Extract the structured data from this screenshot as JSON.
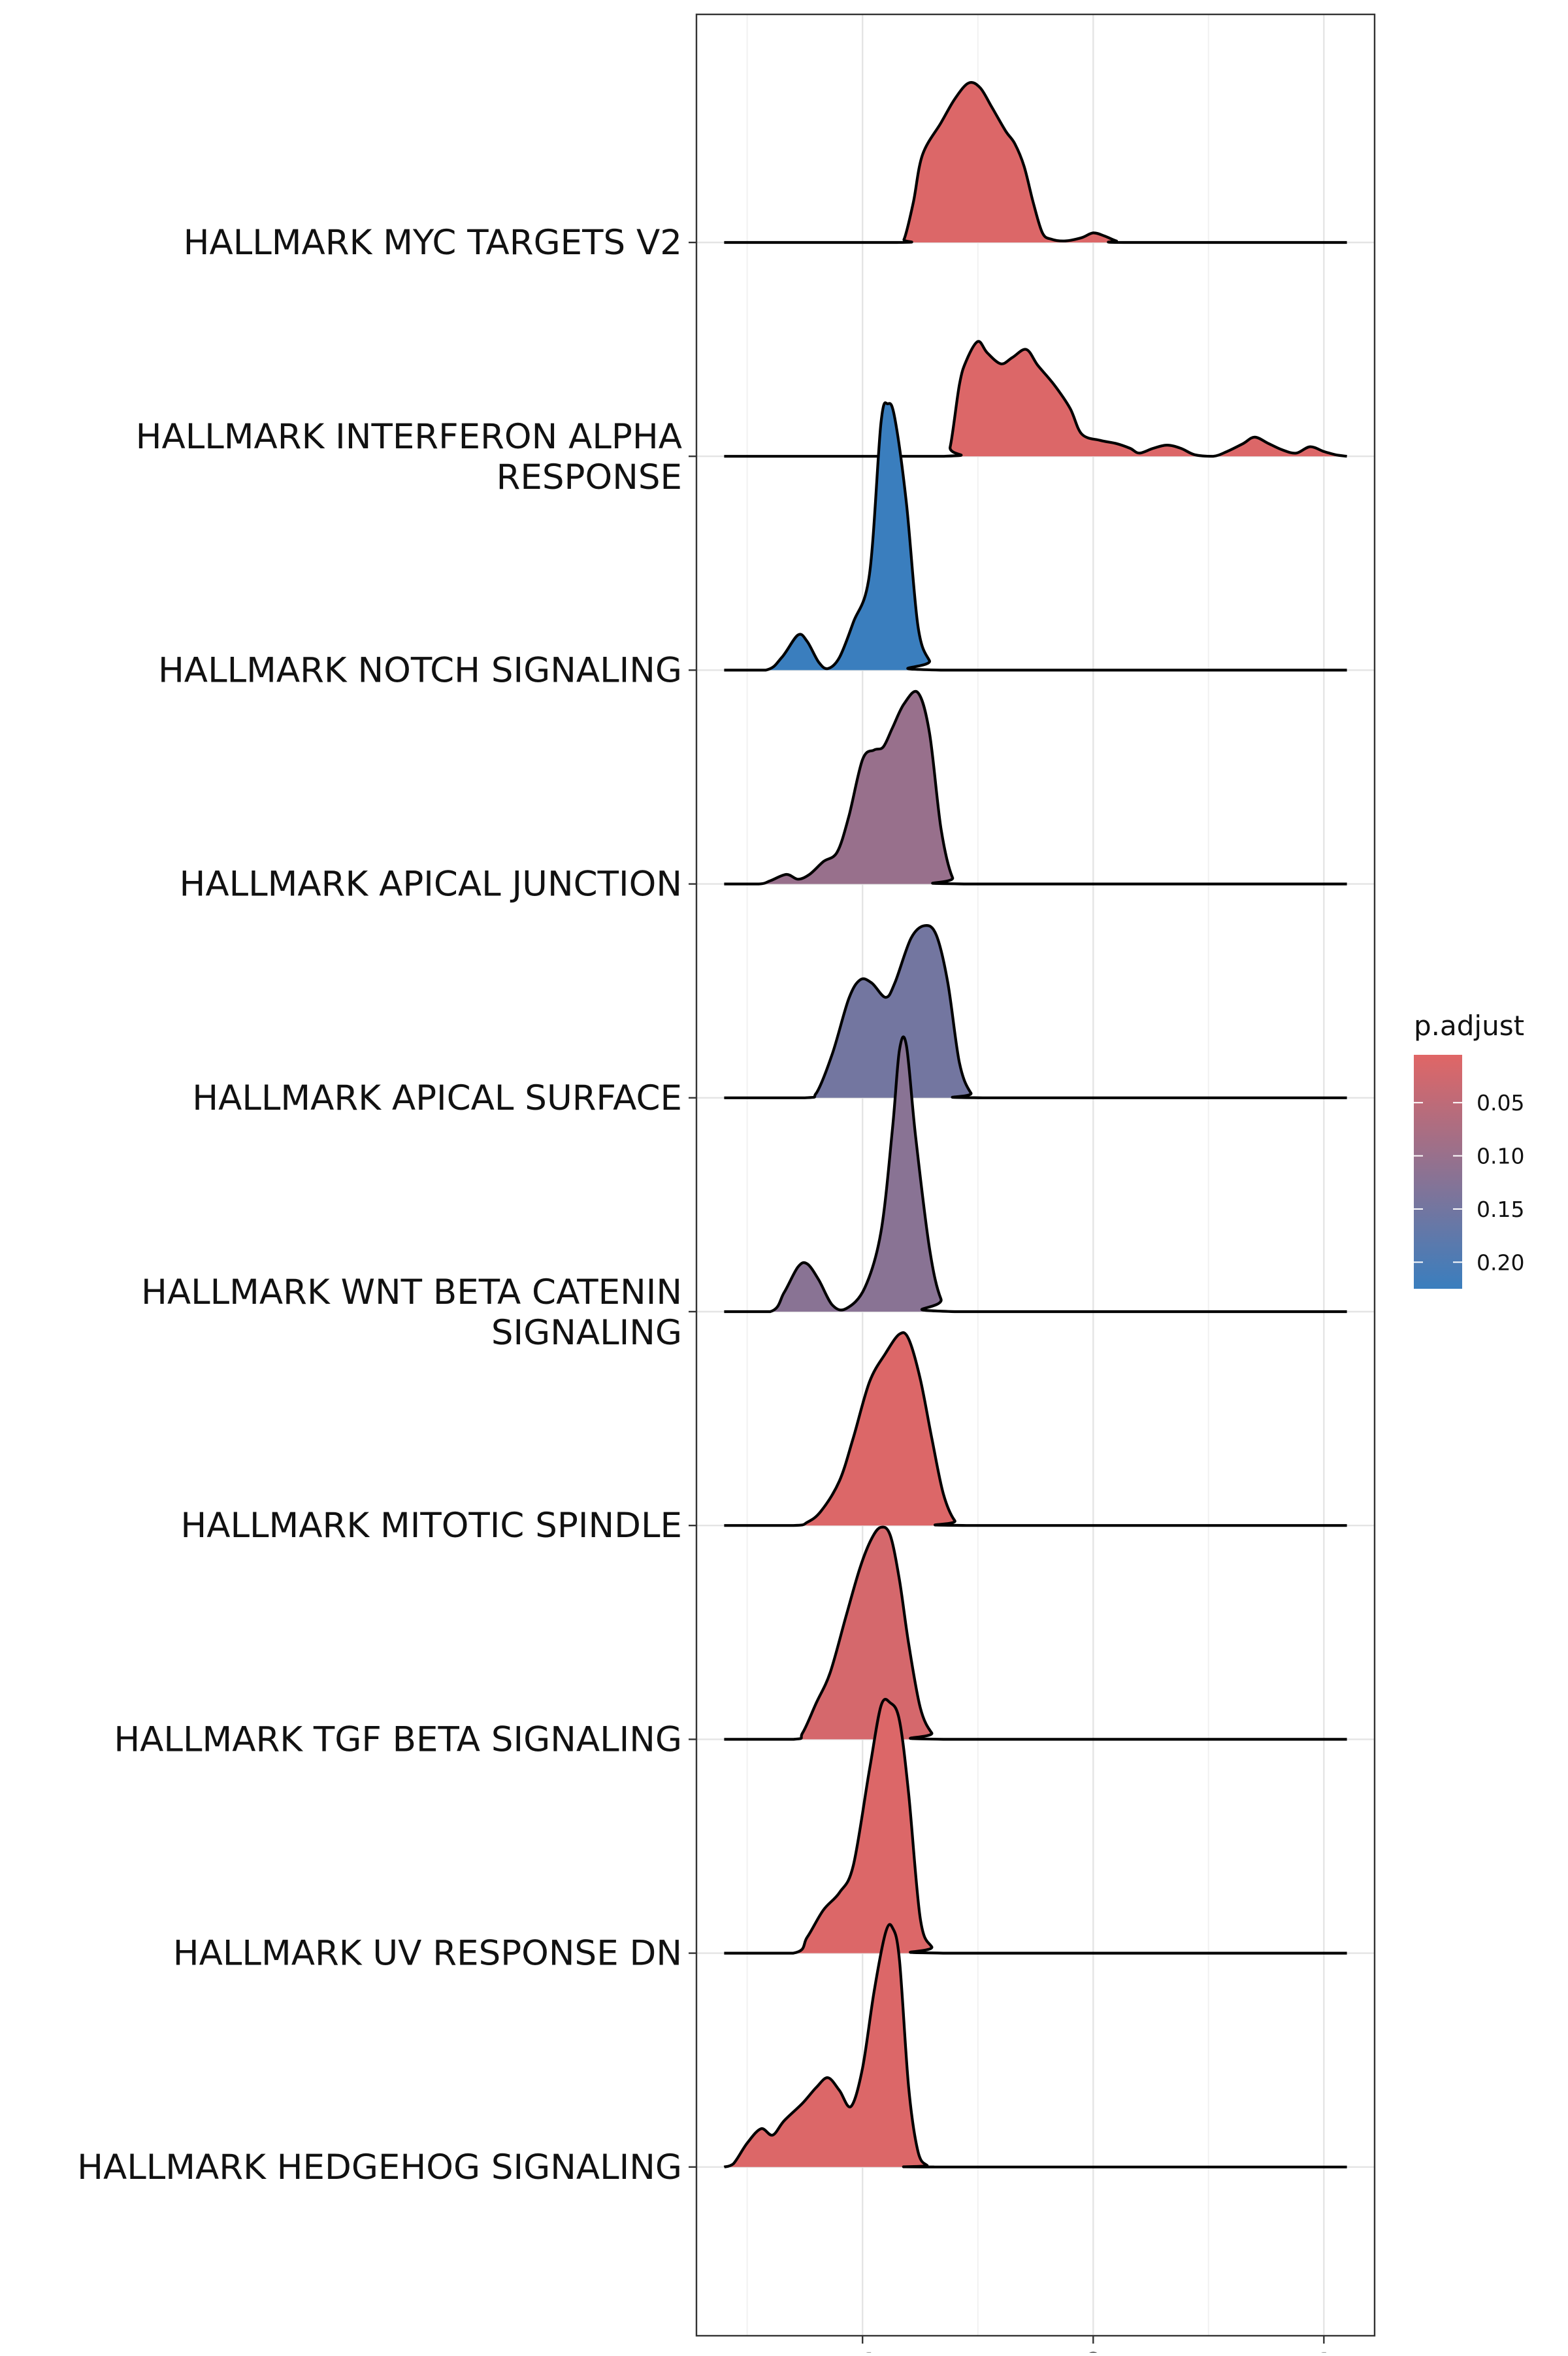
{
  "chart_data": {
    "type": "ridgeline",
    "x_tick_labels": [
      "-1",
      "0",
      "1"
    ],
    "x_ticks": [
      -1,
      0,
      1
    ],
    "xlim": [
      -1.72,
      1.22
    ],
    "grid": true,
    "legend": {
      "title": "p.adjust",
      "placement": "right",
      "range": [
        0.005,
        0.225
      ],
      "ticks": [
        0.05,
        0.1,
        0.15,
        0.2
      ],
      "tick_labels": [
        "0.05",
        "0.10",
        "0.15",
        "0.20"
      ],
      "color_low_p": "#E06666",
      "color_high_p": "#3A7EBE"
    },
    "series": [
      {
        "category": "HALLMARK MYC TARGETS V2",
        "p_adjust": 0.01,
        "density": [
          [
            -1.6,
            0
          ],
          [
            -0.85,
            0
          ],
          [
            -0.82,
            0.02
          ],
          [
            -0.78,
            0.25
          ],
          [
            -0.74,
            0.55
          ],
          [
            -0.66,
            0.75
          ],
          [
            -0.6,
            0.9
          ],
          [
            -0.54,
            1.0
          ],
          [
            -0.49,
            0.97
          ],
          [
            -0.44,
            0.85
          ],
          [
            -0.38,
            0.7
          ],
          [
            -0.34,
            0.62
          ],
          [
            -0.3,
            0.48
          ],
          [
            -0.26,
            0.25
          ],
          [
            -0.22,
            0.06
          ],
          [
            -0.18,
            0.02
          ],
          [
            -0.12,
            0.01
          ],
          [
            -0.05,
            0.03
          ],
          [
            0.0,
            0.06
          ],
          [
            0.05,
            0.04
          ],
          [
            0.1,
            0.01
          ],
          [
            0.15,
            0
          ],
          [
            1.1,
            0
          ]
        ]
      },
      {
        "category": "HALLMARK INTERFERON ALPHA RESPONSE",
        "p_adjust": 0.01,
        "density": [
          [
            -1.6,
            0
          ],
          [
            -0.65,
            0
          ],
          [
            -0.62,
            0.06
          ],
          [
            -0.58,
            0.45
          ],
          [
            -0.55,
            0.6
          ],
          [
            -0.5,
            0.72
          ],
          [
            -0.46,
            0.65
          ],
          [
            -0.4,
            0.58
          ],
          [
            -0.35,
            0.62
          ],
          [
            -0.29,
            0.67
          ],
          [
            -0.24,
            0.57
          ],
          [
            -0.17,
            0.45
          ],
          [
            -0.1,
            0.3
          ],
          [
            -0.05,
            0.14
          ],
          [
            0.03,
            0.1
          ],
          [
            0.1,
            0.08
          ],
          [
            0.16,
            0.05
          ],
          [
            0.2,
            0.02
          ],
          [
            0.26,
            0.05
          ],
          [
            0.32,
            0.07
          ],
          [
            0.38,
            0.05
          ],
          [
            0.44,
            0.01
          ],
          [
            0.52,
            0
          ],
          [
            0.58,
            0.03
          ],
          [
            0.65,
            0.08
          ],
          [
            0.7,
            0.12
          ],
          [
            0.76,
            0.08
          ],
          [
            0.82,
            0.04
          ],
          [
            0.88,
            0.02
          ],
          [
            0.94,
            0.06
          ],
          [
            1.0,
            0.03
          ],
          [
            1.05,
            0.01
          ],
          [
            1.1,
            0
          ]
        ]
      },
      {
        "category": "HALLMARK NOTCH SIGNALING",
        "p_adjust": 0.225,
        "density": [
          [
            -1.6,
            0
          ],
          [
            -1.42,
            0
          ],
          [
            -1.35,
            0.08
          ],
          [
            -1.28,
            0.22
          ],
          [
            -1.24,
            0.18
          ],
          [
            -1.19,
            0.05
          ],
          [
            -1.15,
            0.01
          ],
          [
            -1.1,
            0.08
          ],
          [
            -1.04,
            0.3
          ],
          [
            -0.97,
            0.6
          ],
          [
            -0.92,
            1.55
          ],
          [
            -0.89,
            1.67
          ],
          [
            -0.86,
            1.58
          ],
          [
            -0.81,
            1.05
          ],
          [
            -0.76,
            0.28
          ],
          [
            -0.71,
            0.06
          ],
          [
            -0.66,
            0
          ],
          [
            1.1,
            0
          ]
        ]
      },
      {
        "category": "HALLMARK APICAL JUNCTION",
        "p_adjust": 0.1,
        "density": [
          [
            -1.6,
            0
          ],
          [
            -1.45,
            0
          ],
          [
            -1.4,
            0.02
          ],
          [
            -1.33,
            0.06
          ],
          [
            -1.28,
            0.03
          ],
          [
            -1.23,
            0.06
          ],
          [
            -1.17,
            0.14
          ],
          [
            -1.11,
            0.2
          ],
          [
            -1.06,
            0.42
          ],
          [
            -1.0,
            0.78
          ],
          [
            -0.95,
            0.84
          ],
          [
            -0.91,
            0.86
          ],
          [
            -0.87,
            0.98
          ],
          [
            -0.82,
            1.13
          ],
          [
            -0.76,
            1.2
          ],
          [
            -0.71,
            0.95
          ],
          [
            -0.66,
            0.35
          ],
          [
            -0.61,
            0.04
          ],
          [
            -0.56,
            0
          ],
          [
            1.1,
            0
          ]
        ]
      },
      {
        "category": "HALLMARK APICAL SURFACE",
        "p_adjust": 0.15,
        "density": [
          [
            -1.6,
            0
          ],
          [
            -1.25,
            0
          ],
          [
            -1.2,
            0.03
          ],
          [
            -1.13,
            0.28
          ],
          [
            -1.06,
            0.62
          ],
          [
            -1.01,
            0.74
          ],
          [
            -0.96,
            0.72
          ],
          [
            -0.9,
            0.63
          ],
          [
            -0.86,
            0.72
          ],
          [
            -0.79,
            1.0
          ],
          [
            -0.73,
            1.08
          ],
          [
            -0.68,
            1.02
          ],
          [
            -0.63,
            0.72
          ],
          [
            -0.58,
            0.22
          ],
          [
            -0.53,
            0.03
          ],
          [
            -0.48,
            0
          ],
          [
            1.1,
            0
          ]
        ]
      },
      {
        "category": "HALLMARK WNT BETA CATENIN SIGNALING",
        "p_adjust": 0.12,
        "density": [
          [
            -1.6,
            0
          ],
          [
            -1.4,
            0
          ],
          [
            -1.34,
            0.12
          ],
          [
            -1.28,
            0.28
          ],
          [
            -1.24,
            0.3
          ],
          [
            -1.19,
            0.2
          ],
          [
            -1.13,
            0.04
          ],
          [
            -1.07,
            0.02
          ],
          [
            -0.99,
            0.15
          ],
          [
            -0.92,
            0.5
          ],
          [
            -0.87,
            1.15
          ],
          [
            -0.84,
            1.64
          ],
          [
            -0.81,
            1.67
          ],
          [
            -0.77,
            1.1
          ],
          [
            -0.71,
            0.4
          ],
          [
            -0.66,
            0.08
          ],
          [
            -0.6,
            0
          ],
          [
            1.1,
            0
          ]
        ]
      },
      {
        "category": "HALLMARK MITOTIC SPINDLE",
        "p_adjust": 0.01,
        "density": [
          [
            -1.6,
            0
          ],
          [
            -1.3,
            0
          ],
          [
            -1.24,
            0.02
          ],
          [
            -1.18,
            0.09
          ],
          [
            -1.1,
            0.28
          ],
          [
            -1.04,
            0.55
          ],
          [
            -0.97,
            0.9
          ],
          [
            -0.9,
            1.08
          ],
          [
            -0.84,
            1.2
          ],
          [
            -0.8,
            1.17
          ],
          [
            -0.75,
            0.92
          ],
          [
            -0.7,
            0.55
          ],
          [
            -0.65,
            0.2
          ],
          [
            -0.6,
            0.03
          ],
          [
            -0.55,
            0
          ],
          [
            1.1,
            0
          ]
        ]
      },
      {
        "category": "HALLMARK TGF BETA SIGNALING",
        "p_adjust": 0.02,
        "density": [
          [
            -1.6,
            0
          ],
          [
            -1.3,
            0
          ],
          [
            -1.26,
            0.04
          ],
          [
            -1.2,
            0.23
          ],
          [
            -1.14,
            0.42
          ],
          [
            -1.07,
            0.78
          ],
          [
            -1.01,
            1.08
          ],
          [
            -0.96,
            1.26
          ],
          [
            -0.92,
            1.33
          ],
          [
            -0.88,
            1.28
          ],
          [
            -0.84,
            1.0
          ],
          [
            -0.8,
            0.6
          ],
          [
            -0.75,
            0.2
          ],
          [
            -0.7,
            0.04
          ],
          [
            -0.65,
            0
          ],
          [
            1.1,
            0
          ]
        ]
      },
      {
        "category": "HALLMARK UV RESPONSE DN",
        "p_adjust": 0.01,
        "density": [
          [
            -1.6,
            0
          ],
          [
            -1.3,
            0
          ],
          [
            -1.24,
            0.1
          ],
          [
            -1.17,
            0.27
          ],
          [
            -1.1,
            0.38
          ],
          [
            -1.04,
            0.55
          ],
          [
            -0.97,
            1.15
          ],
          [
            -0.92,
            1.55
          ],
          [
            -0.88,
            1.57
          ],
          [
            -0.84,
            1.46
          ],
          [
            -0.8,
            1.0
          ],
          [
            -0.75,
            0.22
          ],
          [
            -0.7,
            0.04
          ],
          [
            -0.65,
            0
          ],
          [
            1.1,
            0
          ]
        ]
      },
      {
        "category": "HALLMARK HEDGEHOG SIGNALING",
        "p_adjust": 0.01,
        "density": [
          [
            -1.6,
            0
          ],
          [
            -1.56,
            0.02
          ],
          [
            -1.5,
            0.15
          ],
          [
            -1.44,
            0.24
          ],
          [
            -1.39,
            0.2
          ],
          [
            -1.34,
            0.29
          ],
          [
            -1.26,
            0.4
          ],
          [
            -1.2,
            0.5
          ],
          [
            -1.15,
            0.56
          ],
          [
            -1.1,
            0.48
          ],
          [
            -1.05,
            0.38
          ],
          [
            -1.0,
            0.62
          ],
          [
            -0.95,
            1.1
          ],
          [
            -0.9,
            1.47
          ],
          [
            -0.87,
            1.5
          ],
          [
            -0.84,
            1.3
          ],
          [
            -0.8,
            0.5
          ],
          [
            -0.76,
            0.1
          ],
          [
            -0.72,
            0.01
          ],
          [
            -0.68,
            0
          ],
          [
            1.1,
            0
          ]
        ]
      }
    ]
  }
}
